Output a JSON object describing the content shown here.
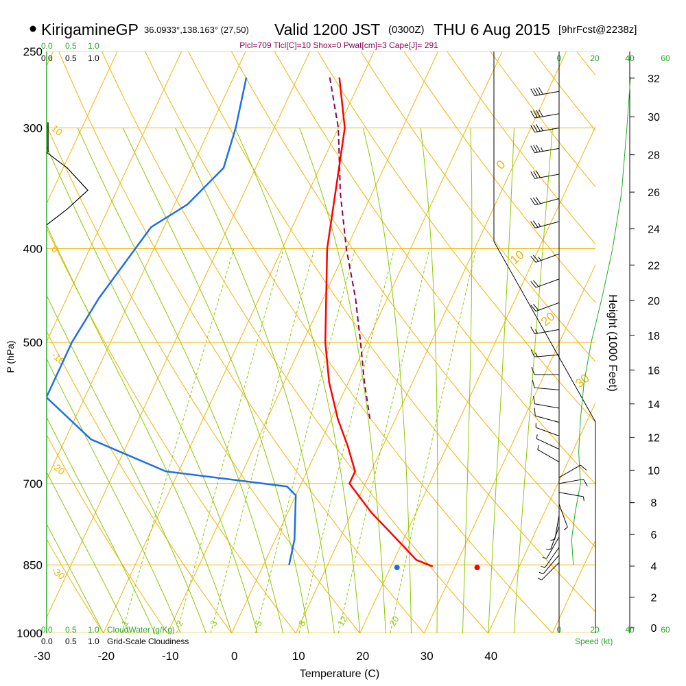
{
  "header": {
    "site": "KirigamineGP",
    "coords": "36.0933°,138.163° (27,50)",
    "valid": "Valid 1200 JST",
    "zulu": "(0300Z)",
    "date": "THU 6 Aug 2015",
    "fcst": "[9hrFcst@2238z]",
    "indices": "Plcl=709 Tlcl[C]=10 Shox=0 Pwat[cm]=3 Cape[J]= 291"
  },
  "scales": {
    "cloudwater_ticks": [
      "0.0",
      "0.5",
      "1.0"
    ],
    "cloudiness_ticks": [
      "0.0",
      "0.5",
      "1.0"
    ],
    "cloudwater_label": "CloudWater (g/Kg)",
    "cloudiness_label": "Grid-Scale Cloudiness",
    "speed_ticks": [
      "0",
      "20",
      "40",
      "60"
    ],
    "speed_label": "Speed (kt)"
  },
  "colors": {
    "isotherm": "#f0b400",
    "dry_adiabat": "#f0b400",
    "moist_adiabat": "#8cc800",
    "mixing_ratio": "#8cc800",
    "temperature": "#ff0000",
    "dewpoint": "#1e6ee6",
    "parcel": "#8b0050",
    "green_text": "#22aa22",
    "wind_speed": "#22aa22"
  },
  "chart_data": {
    "type": "skew-t",
    "xlabel": "Temperature (C)",
    "ylabel": "P (hPa)",
    "y2label": "Height (1000 Feet)",
    "x_ticks": [
      -30,
      -20,
      -10,
      0,
      10,
      20,
      30,
      40
    ],
    "p_ticks": [
      250,
      300,
      400,
      500,
      700,
      850,
      1000
    ],
    "height_ticks": [
      0,
      2,
      4,
      6,
      8,
      10,
      12,
      14,
      16,
      18,
      20,
      22,
      24,
      26,
      28,
      30,
      32
    ],
    "isotherm_labels": [
      {
        "t": -10,
        "text": "10"
      },
      {
        "t": 0,
        "text": "0"
      },
      {
        "t": -10,
        "text": "-10"
      },
      {
        "t": -20,
        "text": "-20"
      },
      {
        "t": -30,
        "text": "-30"
      },
      {
        "t": 0,
        "text": "0"
      },
      {
        "t": 10,
        "text": "10"
      },
      {
        "t": 20,
        "text": "20"
      },
      {
        "t": 30,
        "text": "30"
      }
    ],
    "mixing_ratio_labels": [
      "1",
      "2",
      "3",
      "5",
      "8",
      "12",
      "20"
    ],
    "temperature": [
      {
        "p": 266,
        "t": -23.5
      },
      {
        "p": 300,
        "t": -19
      },
      {
        "p": 330,
        "t": -17
      },
      {
        "p": 400,
        "t": -13
      },
      {
        "p": 500,
        "t": -6.5
      },
      {
        "p": 550,
        "t": -3
      },
      {
        "p": 600,
        "t": 1
      },
      {
        "p": 640,
        "t": 4.5
      },
      {
        "p": 680,
        "t": 7.5
      },
      {
        "p": 700,
        "t": 7.5
      },
      {
        "p": 750,
        "t": 13
      },
      {
        "p": 800,
        "t": 19
      },
      {
        "p": 840,
        "t": 23.5
      },
      {
        "p": 853,
        "t": 26.5
      },
      {
        "p": 855,
        "t": 33.5
      }
    ],
    "dewpoint": [
      {
        "p": 266,
        "t": -38
      },
      {
        "p": 300,
        "t": -36
      },
      {
        "p": 330,
        "t": -35
      },
      {
        "p": 360,
        "t": -38
      },
      {
        "p": 380,
        "t": -42
      },
      {
        "p": 450,
        "t": -45
      },
      {
        "p": 500,
        "t": -46
      },
      {
        "p": 570,
        "t": -46
      },
      {
        "p": 630,
        "t": -36
      },
      {
        "p": 680,
        "t": -22
      },
      {
        "p": 705,
        "t": -2
      },
      {
        "p": 720,
        "t": 0
      },
      {
        "p": 800,
        "t": 3
      },
      {
        "p": 850,
        "t": 4
      },
      {
        "p": 855,
        "t": 21
      }
    ],
    "parcel": [
      {
        "p": 266,
        "t": -25
      },
      {
        "p": 300,
        "t": -20
      },
      {
        "p": 350,
        "t": -15
      },
      {
        "p": 400,
        "t": -10
      },
      {
        "p": 450,
        "t": -5
      },
      {
        "p": 500,
        "t": -1
      },
      {
        "p": 550,
        "t": 2.5
      },
      {
        "p": 600,
        "t": 6
      }
    ],
    "cloudwater_profile": [
      {
        "p": 318,
        "v": 0.0
      },
      {
        "p": 330,
        "v": 0.25
      },
      {
        "p": 348,
        "v": 0.5
      },
      {
        "p": 364,
        "v": 0.25
      },
      {
        "p": 378,
        "v": 0.0
      }
    ],
    "wind_barbs": [
      {
        "p": 275,
        "dir": 260,
        "spd": 40
      },
      {
        "p": 290,
        "dir": 260,
        "spd": 40
      },
      {
        "p": 300,
        "dir": 260,
        "spd": 35
      },
      {
        "p": 315,
        "dir": 260,
        "spd": 35
      },
      {
        "p": 335,
        "dir": 260,
        "spd": 30
      },
      {
        "p": 355,
        "dir": 255,
        "spd": 30
      },
      {
        "p": 375,
        "dir": 255,
        "spd": 25
      },
      {
        "p": 405,
        "dir": 250,
        "spd": 25
      },
      {
        "p": 430,
        "dir": 250,
        "spd": 20
      },
      {
        "p": 455,
        "dir": 250,
        "spd": 20
      },
      {
        "p": 485,
        "dir": 260,
        "spd": 15
      },
      {
        "p": 515,
        "dir": 265,
        "spd": 15
      },
      {
        "p": 540,
        "dir": 270,
        "spd": 10
      },
      {
        "p": 560,
        "dir": 275,
        "spd": 10
      },
      {
        "p": 585,
        "dir": 280,
        "spd": 10
      },
      {
        "p": 605,
        "dir": 285,
        "spd": 10
      },
      {
        "p": 625,
        "dir": 290,
        "spd": 5
      },
      {
        "p": 645,
        "dir": 295,
        "spd": 5
      },
      {
        "p": 665,
        "dir": 300,
        "spd": 5
      },
      {
        "p": 690,
        "dir": 60,
        "spd": 10
      },
      {
        "p": 700,
        "dir": 80,
        "spd": 10
      },
      {
        "p": 715,
        "dir": 100,
        "spd": 5
      },
      {
        "p": 735,
        "dir": 160,
        "spd": 5
      },
      {
        "p": 755,
        "dir": 190,
        "spd": 5
      },
      {
        "p": 775,
        "dir": 200,
        "spd": 5
      },
      {
        "p": 795,
        "dir": 210,
        "spd": 5
      },
      {
        "p": 815,
        "dir": 215,
        "spd": 5
      },
      {
        "p": 830,
        "dir": 220,
        "spd": 5
      },
      {
        "p": 845,
        "dir": 225,
        "spd": 5
      }
    ],
    "wind_speed_profile": [
      {
        "p": 266,
        "spd": 40
      },
      {
        "p": 300,
        "spd": 38
      },
      {
        "p": 350,
        "spd": 35
      },
      {
        "p": 400,
        "spd": 30
      },
      {
        "p": 450,
        "spd": 24
      },
      {
        "p": 500,
        "spd": 18
      },
      {
        "p": 550,
        "spd": 14
      },
      {
        "p": 600,
        "spd": 12
      },
      {
        "p": 650,
        "spd": 11
      },
      {
        "p": 700,
        "spd": 12
      },
      {
        "p": 750,
        "spd": 9
      },
      {
        "p": 800,
        "spd": 7
      },
      {
        "p": 850,
        "spd": 8
      }
    ]
  }
}
